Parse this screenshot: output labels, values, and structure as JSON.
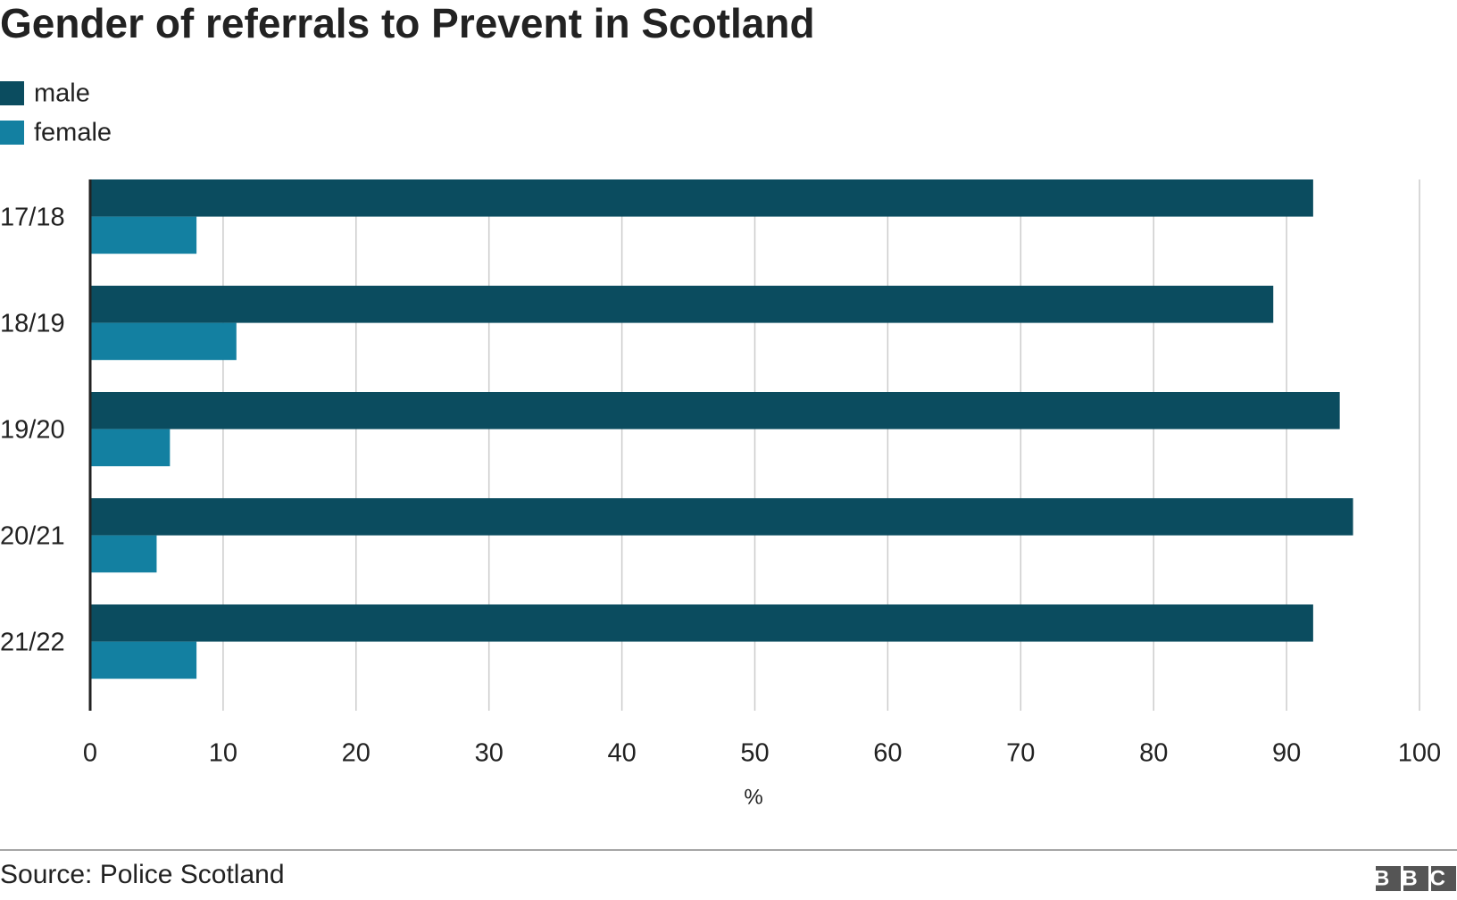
{
  "chart_data": {
    "type": "barh",
    "title": "Gender of referrals to Prevent in Scotland",
    "categories": [
      "17/18",
      "18/19",
      "19/20",
      "20/21",
      "21/22"
    ],
    "series": [
      {
        "name": "male",
        "color": "#0b4c5f",
        "values": [
          92,
          89,
          94,
          95,
          92
        ]
      },
      {
        "name": "female",
        "color": "#1380a1",
        "values": [
          8,
          11,
          6,
          5,
          8
        ]
      }
    ],
    "xlim": [
      0,
      100
    ],
    "xticks": [
      0,
      10,
      20,
      30,
      40,
      50,
      60,
      70,
      80,
      90,
      100
    ],
    "xlabel": "%",
    "grid": true,
    "source": "Source: Police Scotland",
    "logo": "BBC"
  }
}
